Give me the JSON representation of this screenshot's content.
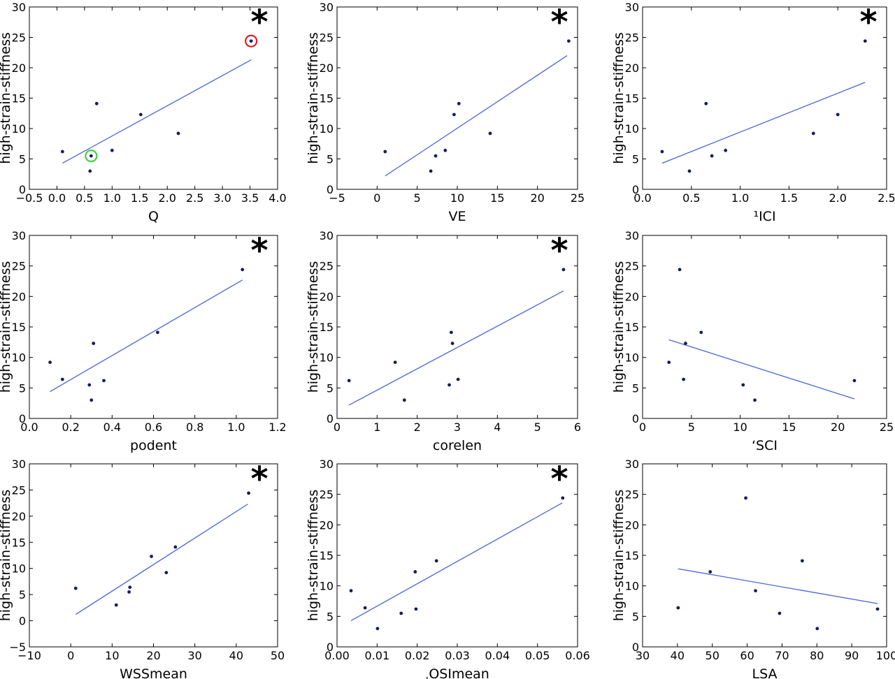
{
  "figure": {
    "panels": 9,
    "colors": {
      "point": "#141e5c",
      "fit_line": "#4a64d8",
      "highlight_red": "#e41e26",
      "highlight_green": "#3ed13e"
    }
  },
  "chart_data": [
    {
      "type": "scatter",
      "xlabel": "Q",
      "ylabel": "high-strain-stiffness",
      "xlim": [
        -0.5,
        4.0
      ],
      "ylim": [
        0,
        30
      ],
      "xticks": [
        -0.5,
        0.0,
        0.5,
        1.0,
        1.5,
        2.0,
        2.5,
        3.0,
        3.5,
        4.0
      ],
      "xtick_labels": [
        "−0.5",
        "0.0",
        "0.5",
        "1.0",
        "1.5",
        "2.0",
        "2.5",
        "3.0",
        "3.5",
        "4.0"
      ],
      "yticks": [
        0,
        5,
        10,
        15,
        20,
        25,
        30
      ],
      "ytick_labels": [
        "0",
        "5",
        "10",
        "15",
        "20",
        "25",
        "30"
      ],
      "points": [
        [
          0.1,
          6.2
        ],
        [
          0.6,
          3.0
        ],
        [
          0.62,
          5.5
        ],
        [
          0.72,
          14.1
        ],
        [
          1.0,
          6.4
        ],
        [
          1.52,
          12.3
        ],
        [
          2.2,
          9.2
        ],
        [
          3.52,
          24.4
        ]
      ],
      "fit_line": [
        [
          0.1,
          4.3
        ],
        [
          3.52,
          21.3
        ]
      ],
      "highlights": [
        {
          "x": 3.52,
          "y": 24.4,
          "color": "red"
        },
        {
          "x": 0.62,
          "y": 5.5,
          "color": "green"
        }
      ],
      "significant": true,
      "annotation": "*"
    },
    {
      "type": "scatter",
      "xlabel": "VE",
      "ylabel": "high-strain-stiffness",
      "xlim": [
        -5,
        25
      ],
      "ylim": [
        0,
        30
      ],
      "xticks": [
        -5,
        0,
        5,
        10,
        15,
        20,
        25
      ],
      "xtick_labels": [
        "−5",
        "0",
        "5",
        "10",
        "15",
        "20",
        "25"
      ],
      "yticks": [
        0,
        5,
        10,
        15,
        20,
        25,
        30
      ],
      "ytick_labels": [
        "0",
        "5",
        "10",
        "15",
        "20",
        "25",
        "30"
      ],
      "points": [
        [
          1.0,
          6.2
        ],
        [
          6.7,
          3.0
        ],
        [
          7.3,
          5.5
        ],
        [
          8.5,
          6.4
        ],
        [
          9.6,
          12.3
        ],
        [
          10.2,
          14.1
        ],
        [
          14.1,
          9.2
        ],
        [
          23.9,
          24.4
        ]
      ],
      "fit_line": [
        [
          1.0,
          2.2
        ],
        [
          23.7,
          22.0
        ]
      ],
      "highlights": [],
      "significant": true,
      "annotation": "*"
    },
    {
      "type": "scatter",
      "xlabel": "¹ICI",
      "ylabel": "high-strain-stiffness",
      "xlim": [
        0.0,
        2.5
      ],
      "ylim": [
        0,
        30
      ],
      "xticks": [
        0.0,
        0.5,
        1.0,
        1.5,
        2.0,
        2.5
      ],
      "xtick_labels": [
        "0.0",
        "0.5",
        "1.0",
        "1.5",
        "2.0",
        "2.5"
      ],
      "yticks": [
        0,
        5,
        10,
        15,
        20,
        25,
        30
      ],
      "ytick_labels": [
        "0",
        "5",
        "10",
        "15",
        "20",
        "25",
        "30"
      ],
      "points": [
        [
          0.2,
          6.2
        ],
        [
          0.48,
          3.0
        ],
        [
          0.65,
          14.1
        ],
        [
          0.71,
          5.5
        ],
        [
          0.85,
          6.4
        ],
        [
          1.75,
          9.2
        ],
        [
          2.0,
          12.3
        ],
        [
          2.28,
          24.4
        ]
      ],
      "fit_line": [
        [
          0.2,
          4.3
        ],
        [
          2.28,
          17.6
        ]
      ],
      "highlights": [],
      "significant": true,
      "annotation": "*"
    },
    {
      "type": "scatter",
      "xlabel": "podent",
      "ylabel": "high-strain-stiffness",
      "xlim": [
        0.0,
        1.2
      ],
      "ylim": [
        0,
        30
      ],
      "xticks": [
        0.0,
        0.2,
        0.4,
        0.6,
        0.8,
        1.0,
        1.2
      ],
      "xtick_labels": [
        "0.0",
        "0.2",
        "0.4",
        "0.6",
        "0.8",
        "1.0",
        "1.2"
      ],
      "yticks": [
        0,
        5,
        10,
        15,
        20,
        25,
        30
      ],
      "ytick_labels": [
        "0",
        "5",
        "10",
        "15",
        "20",
        "25",
        "30"
      ],
      "points": [
        [
          0.1,
          9.2
        ],
        [
          0.16,
          6.4
        ],
        [
          0.29,
          5.5
        ],
        [
          0.3,
          3.0
        ],
        [
          0.31,
          12.3
        ],
        [
          0.36,
          6.2
        ],
        [
          0.62,
          14.1
        ],
        [
          1.03,
          24.4
        ]
      ],
      "fit_line": [
        [
          0.1,
          4.4
        ],
        [
          1.03,
          22.7
        ]
      ],
      "highlights": [],
      "significant": true,
      "annotation": "*"
    },
    {
      "type": "scatter",
      "xlabel": "corelen",
      "ylabel": "high-strain-stiffness",
      "xlim": [
        0,
        6
      ],
      "ylim": [
        0,
        30
      ],
      "xticks": [
        0,
        1,
        2,
        3,
        4,
        5,
        6
      ],
      "xtick_labels": [
        "0",
        "1",
        "2",
        "3",
        "4",
        "5",
        "6"
      ],
      "yticks": [
        0,
        5,
        10,
        15,
        20,
        25,
        30
      ],
      "ytick_labels": [
        "0",
        "5",
        "10",
        "15",
        "20",
        "25",
        "30"
      ],
      "points": [
        [
          0.3,
          6.2
        ],
        [
          1.45,
          9.2
        ],
        [
          1.68,
          3.0
        ],
        [
          2.8,
          5.5
        ],
        [
          2.85,
          14.1
        ],
        [
          2.88,
          12.3
        ],
        [
          3.02,
          6.4
        ],
        [
          5.65,
          24.4
        ]
      ],
      "fit_line": [
        [
          0.3,
          2.2
        ],
        [
          5.65,
          20.9
        ]
      ],
      "highlights": [],
      "significant": true,
      "annotation": "*"
    },
    {
      "type": "scatter",
      "xlabel": "ʻSCI",
      "ylabel": "high-strain-stiffness",
      "xlim": [
        0,
        25
      ],
      "ylim": [
        0,
        30
      ],
      "xticks": [
        0,
        5,
        10,
        15,
        20,
        25
      ],
      "xtick_labels": [
        "0",
        "5",
        "10",
        "15",
        "20",
        "25"
      ],
      "yticks": [
        0,
        5,
        10,
        15,
        20,
        25,
        30
      ],
      "ytick_labels": [
        "0",
        "5",
        "10",
        "15",
        "20",
        "25",
        "30"
      ],
      "points": [
        [
          2.7,
          9.2
        ],
        [
          3.8,
          24.4
        ],
        [
          4.2,
          6.4
        ],
        [
          4.4,
          12.3
        ],
        [
          6.0,
          14.1
        ],
        [
          10.3,
          5.5
        ],
        [
          11.5,
          3.0
        ],
        [
          21.7,
          6.2
        ]
      ],
      "fit_line": [
        [
          2.7,
          12.9
        ],
        [
          21.7,
          3.2
        ]
      ],
      "highlights": [],
      "significant": false,
      "annotation": ""
    },
    {
      "type": "scatter",
      "xlabel": "WSSmean",
      "ylabel": "high-strain-stiffness",
      "xlim": [
        -10,
        50
      ],
      "ylim": [
        -5,
        30
      ],
      "xticks": [
        -10,
        0,
        10,
        20,
        30,
        40,
        50
      ],
      "xtick_labels": [
        "−10",
        "0",
        "10",
        "20",
        "30",
        "40",
        "50"
      ],
      "yticks": [
        -5,
        0,
        5,
        10,
        15,
        20,
        25,
        30
      ],
      "ytick_labels": [
        "−5",
        "0",
        "5",
        "10",
        "15",
        "20",
        "25",
        "30"
      ],
      "points": [
        [
          1.2,
          6.2
        ],
        [
          11.0,
          3.0
        ],
        [
          14.1,
          5.5
        ],
        [
          14.3,
          6.4
        ],
        [
          19.5,
          12.3
        ],
        [
          23.1,
          9.2
        ],
        [
          25.3,
          14.1
        ],
        [
          43.0,
          24.4
        ]
      ],
      "fit_line": [
        [
          1.2,
          1.2
        ],
        [
          42.8,
          22.3
        ]
      ],
      "highlights": [],
      "significant": true,
      "annotation": "*"
    },
    {
      "type": "scatter",
      "xlabel": "ˌOSImean",
      "ylabel": "high-strain-stiffness",
      "xlim": [
        0.0,
        0.06
      ],
      "ylim": [
        0,
        30
      ],
      "xticks": [
        0.0,
        0.01,
        0.02,
        0.03,
        0.04,
        0.05,
        0.06
      ],
      "xtick_labels": [
        "0.00",
        "0.01",
        "0.02",
        "0.03",
        "0.04",
        "0.05",
        "0.06"
      ],
      "yticks": [
        0,
        5,
        10,
        15,
        20,
        25,
        30
      ],
      "ytick_labels": [
        "0",
        "5",
        "10",
        "15",
        "20",
        "25",
        "30"
      ],
      "points": [
        [
          0.0035,
          9.2
        ],
        [
          0.007,
          6.4
        ],
        [
          0.0101,
          3.0
        ],
        [
          0.016,
          5.5
        ],
        [
          0.0195,
          12.3
        ],
        [
          0.0197,
          6.2
        ],
        [
          0.0248,
          14.1
        ],
        [
          0.0563,
          24.4
        ]
      ],
      "fit_line": [
        [
          0.0035,
          4.3
        ],
        [
          0.0562,
          23.6
        ]
      ],
      "highlights": [],
      "significant": true,
      "annotation": "*"
    },
    {
      "type": "scatter",
      "xlabel": "LSA",
      "ylabel": "high-strain-stiffness",
      "xlim": [
        30,
        100
      ],
      "ylim": [
        0,
        30
      ],
      "xticks": [
        30,
        40,
        50,
        60,
        70,
        80,
        90,
        100
      ],
      "xtick_labels": [
        "30",
        "40",
        "50",
        "60",
        "70",
        "80",
        "90",
        "100"
      ],
      "yticks": [
        0,
        5,
        10,
        15,
        20,
        25,
        30
      ],
      "ytick_labels": [
        "0",
        "5",
        "10",
        "15",
        "20",
        "25",
        "30"
      ],
      "points": [
        [
          40.2,
          6.4
        ],
        [
          49.4,
          12.3
        ],
        [
          59.6,
          24.4
        ],
        [
          62.4,
          9.2
        ],
        [
          69.3,
          5.5
        ],
        [
          75.8,
          14.1
        ],
        [
          80.1,
          3.0
        ],
        [
          97.4,
          6.2
        ]
      ],
      "fit_line": [
        [
          40.2,
          12.8
        ],
        [
          97.4,
          7.1
        ]
      ],
      "highlights": [],
      "significant": false,
      "annotation": ""
    }
  ]
}
